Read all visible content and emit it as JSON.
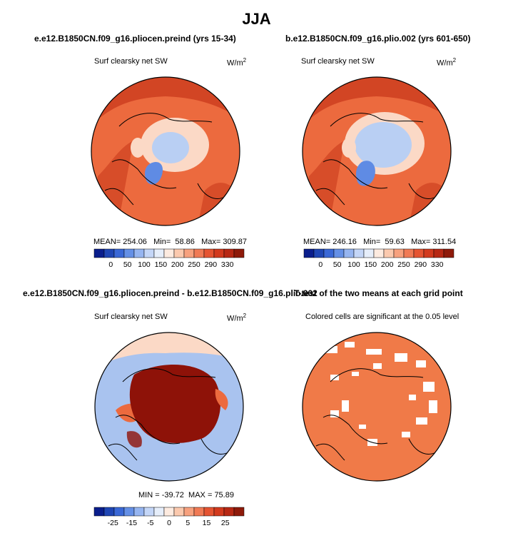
{
  "page": {
    "title": "JJA",
    "panel_titles": [
      "e.e12.B1850CN.f09_g16.pliocen.preind (yrs 15-34)",
      "b.e12.B1850CN.f09_g16.plio.002 (yrs 601-650)",
      "e.e12.B1850CN.f09_g16.pliocen.preind - b.e12.B1850CN.f09_g16.plio.002",
      "T-test of the two means at each grid point"
    ]
  },
  "chart_data": [
    {
      "type": "heatmap",
      "title": "e.e12.B1850CN.f09_g16.pliocen.preind (yrs 15-34)",
      "variable": "Surf clearsky net SW",
      "units_base": "W/m",
      "units_exp": "2",
      "stats": {
        "mean_label": "MEAN=",
        "mean": "254.06",
        "min_label": "Min=",
        "min": "58.86",
        "max_label": "Max=",
        "max": "309.87"
      },
      "colorbar": {
        "ticks": [
          "0",
          "50",
          "100",
          "150",
          "200",
          "250",
          "290",
          "330"
        ],
        "colors": [
          "#0a1e8c",
          "#1f46b4",
          "#3a68d6",
          "#6590e6",
          "#96b5f0",
          "#c4d6f7",
          "#e6eefa",
          "#fdebe0",
          "#fbc9ae",
          "#f7a17e",
          "#f07a55",
          "#e55432",
          "#d23a1e",
          "#b72814",
          "#8e1a0a"
        ]
      }
    },
    {
      "type": "heatmap",
      "title": "b.e12.B1850CN.f09_g16.plio.002 (yrs 601-650)",
      "variable": "Surf clearsky net SW",
      "units_base": "W/m",
      "units_exp": "2",
      "stats": {
        "mean_label": "MEAN=",
        "mean": "246.16",
        "min_label": "Min=",
        "min": "59.63",
        "max_label": "Max=",
        "max": "311.54"
      },
      "colorbar": {
        "ticks": [
          "0",
          "50",
          "100",
          "150",
          "200",
          "250",
          "290",
          "330"
        ],
        "colors": [
          "#0a1e8c",
          "#1f46b4",
          "#3a68d6",
          "#6590e6",
          "#96b5f0",
          "#c4d6f7",
          "#e6eefa",
          "#fdebe0",
          "#fbc9ae",
          "#f7a17e",
          "#f07a55",
          "#e55432",
          "#d23a1e",
          "#b72814",
          "#8e1a0a"
        ]
      }
    },
    {
      "type": "heatmap",
      "title": "e.e12.B1850CN.f09_g16.pliocen.preind - b.e12.B1850CN.f09_g16.plio.002",
      "variable": "Surf clearsky net SW",
      "units_base": "W/m",
      "units_exp": "2",
      "stats": {
        "min_label": "MIN =",
        "min": "-39.72",
        "max_label": "MAX =",
        "max": "75.89"
      },
      "colorbar": {
        "ticks": [
          "-25",
          "-15",
          "-5",
          "0",
          "5",
          "15",
          "25"
        ],
        "colors": [
          "#0a1e8c",
          "#1f46b4",
          "#3a68d6",
          "#6590e6",
          "#96b5f0",
          "#c4d6f7",
          "#e6eefa",
          "#fdebe0",
          "#fbc9ae",
          "#f7a17e",
          "#f07a55",
          "#e55432",
          "#d23a1e",
          "#b72814",
          "#8e1a0a"
        ]
      }
    },
    {
      "type": "heatmap",
      "title": "T-test of the two means at each grid point",
      "subtitle": "Colored cells are significant at the 0.05 level",
      "significance_color": "#f07a48"
    }
  ],
  "colors": {
    "ocean_orange": "#ec6a3e",
    "deep_red": "#c93a1c",
    "pale": "#fbd9c6",
    "light_blue": "#b9cff3",
    "mid_blue": "#5f8be4",
    "dark_red": "#8e1208",
    "diff_blue": "#a9c3ef",
    "ttest_orange": "#f07a48"
  }
}
